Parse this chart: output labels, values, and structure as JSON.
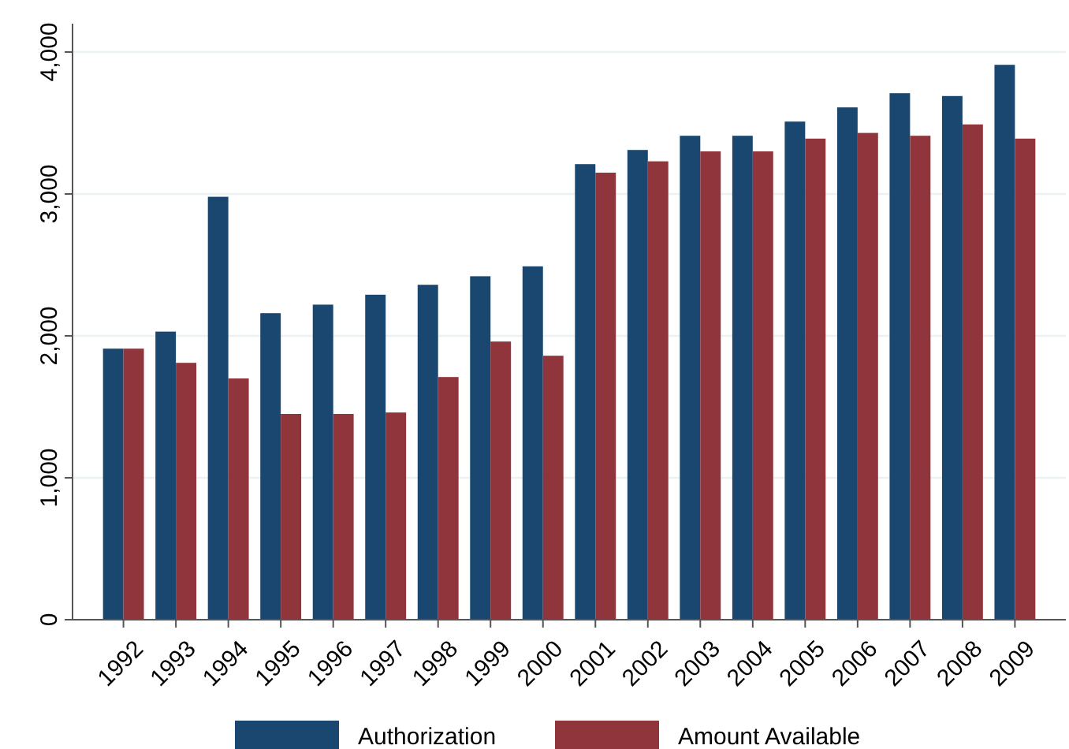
{
  "chart_data": {
    "type": "bar",
    "categories": [
      "1992",
      "1993",
      "1994",
      "1995",
      "1996",
      "1997",
      "1998",
      "1999",
      "2000",
      "2001",
      "2002",
      "2003",
      "2004",
      "2005",
      "2006",
      "2007",
      "2008",
      "2009"
    ],
    "series": [
      {
        "name": "Authorization",
        "color": "#1a476f",
        "values": [
          1910,
          2030,
          2980,
          2160,
          2220,
          2290,
          2360,
          2420,
          2490,
          3210,
          3310,
          3410,
          3410,
          3510,
          3610,
          3710,
          3690,
          3910
        ]
      },
      {
        "name": "Amount Available",
        "color": "#90353b",
        "values": [
          1910,
          1810,
          1700,
          1450,
          1450,
          1460,
          1710,
          1960,
          1860,
          3150,
          3230,
          3300,
          3300,
          3390,
          3430,
          3410,
          3490,
          3390
        ]
      }
    ],
    "ylim": [
      0,
      4200
    ],
    "yticks": [
      {
        "value": 0,
        "label": "0"
      },
      {
        "value": 1000,
        "label": "1,000"
      },
      {
        "value": 2000,
        "label": "2,000"
      },
      {
        "value": 3000,
        "label": "3,000"
      },
      {
        "value": 4000,
        "label": "4,000"
      }
    ],
    "grid": "y",
    "legend": "bottom"
  }
}
